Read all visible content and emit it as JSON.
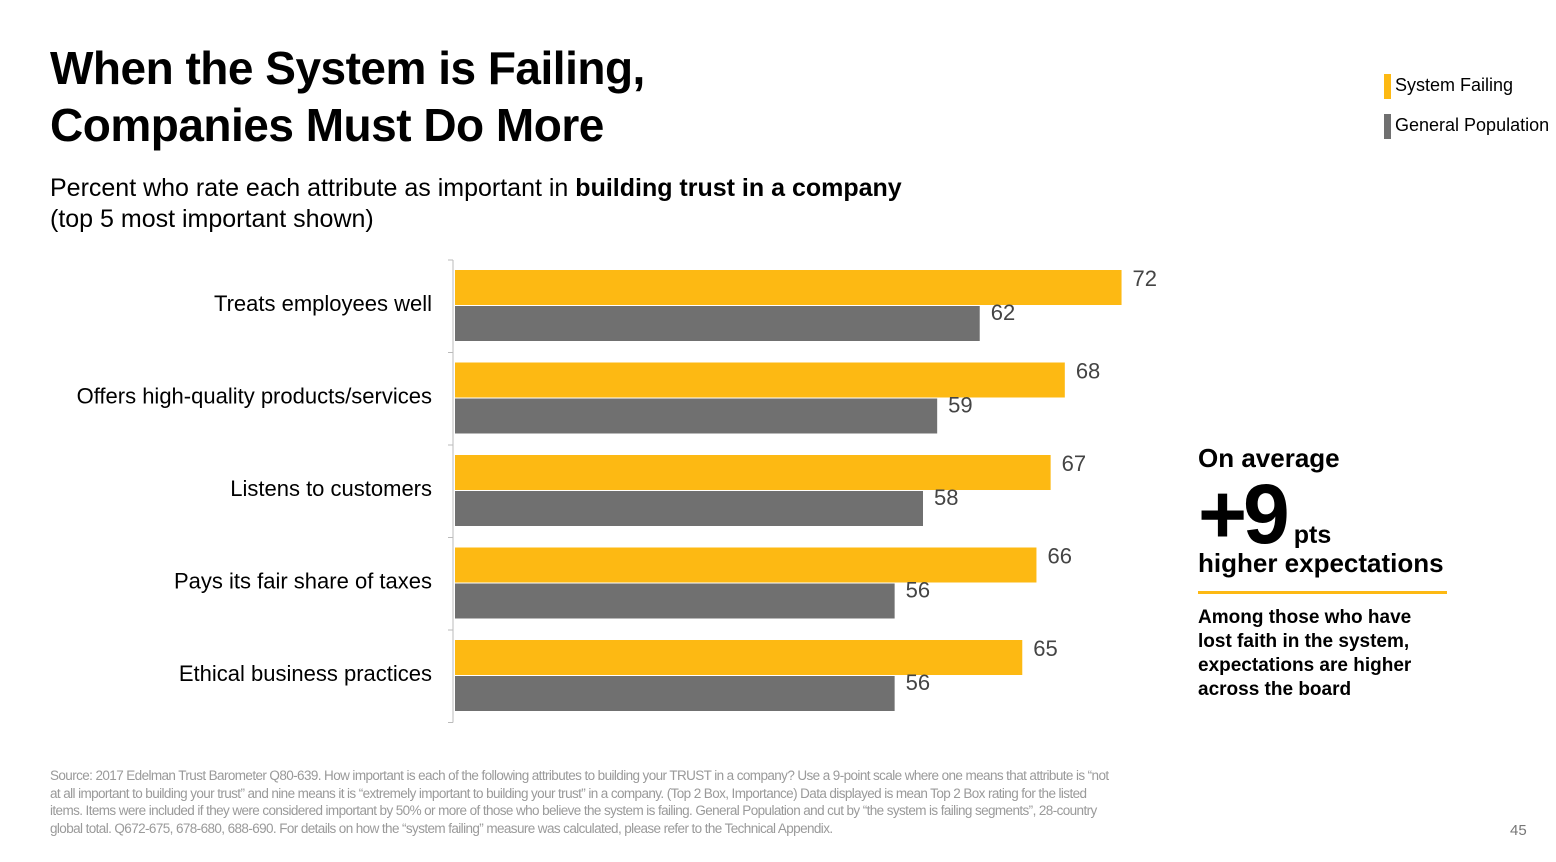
{
  "chart_data": {
    "type": "hbar",
    "title": [
      "When the System is Failing,",
      "Companies Must Do More"
    ],
    "subtitle": {
      "text": "Percent who rate each attribute as important in",
      "bold": "building trust in a company",
      "line2": "(top 5 most important shown)"
    },
    "categories": [
      "Treats employees well",
      "Offers high-quality products/services",
      "Listens to customers",
      "Pays its fair share of taxes",
      "Ethical business practices"
    ],
    "series": [
      {
        "name": "System Failing",
        "color": "#fdb913",
        "values": [
          72,
          68,
          67,
          66,
          65
        ]
      },
      {
        "name": "General Population",
        "color": "#707070",
        "values": [
          62,
          59,
          58,
          56,
          56
        ]
      }
    ],
    "xlim": [
      25,
      80
    ],
    "legend": "top-right",
    "callout": {
      "lead": "On average",
      "big": "+9",
      "unit": "pts",
      "tail": "higher expectations",
      "note": "Among those who have lost faith in the system, expectations are higher across the board"
    },
    "source": "Source: 2017 Edelman Trust Barometer Q80-639. How important is each of the following attributes to building your TRUST in a company? Use a 9-point scale where one means that attribute is “not at all important to building your trust” and nine means it is “extremely important to building your trust” in a company. (Top 2 Box, Importance) Data displayed is mean Top 2 Box rating for the listed items. Items were included if they were considered important by 50% or more of those who believe the system is failing. General Population and cut by “the system is failing segments”, 28-country global total. Q672-675, 678-680, 688-690. For details on how the “system failing” measure was calculated, please refer to the Technical Appendix.",
    "page_number": "45"
  }
}
